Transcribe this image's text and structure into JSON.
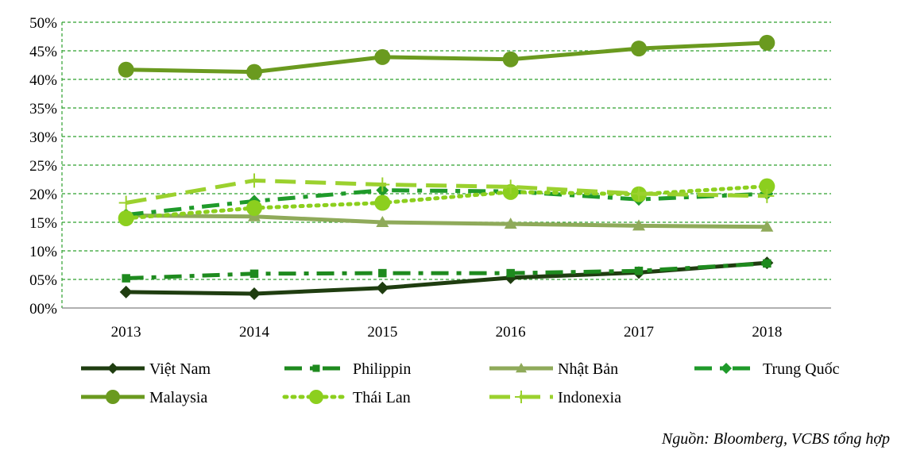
{
  "chart_data": {
    "type": "line",
    "categories": [
      "2013",
      "2014",
      "2015",
      "2016",
      "2017",
      "2018"
    ],
    "ylim": [
      0,
      50
    ],
    "yticks": [
      0,
      5,
      10,
      15,
      20,
      25,
      30,
      35,
      40,
      45,
      50
    ],
    "ytick_labels": [
      "00%",
      "05%",
      "10%",
      "15%",
      "20%",
      "25%",
      "30%",
      "35%",
      "40%",
      "45%",
      "50%"
    ],
    "grid": true,
    "legend_position": "bottom",
    "series": [
      {
        "name": "Việt Nam",
        "values": [
          2.8,
          2.5,
          3.5,
          5.3,
          6.2,
          7.9
        ],
        "color": "#1f3d10",
        "dash": "solid",
        "marker": "diamond"
      },
      {
        "name": "Philippin",
        "values": [
          5.2,
          6.0,
          6.1,
          6.1,
          6.5,
          7.8
        ],
        "color": "#1e8a1e",
        "dash": "dashdot",
        "marker": "square"
      },
      {
        "name": "Nhật Bản",
        "values": [
          16.2,
          16.0,
          15.0,
          14.7,
          14.4,
          14.2
        ],
        "color": "#8faa5a",
        "dash": "solid",
        "marker": "triangle"
      },
      {
        "name": "Trung Quốc",
        "values": [
          16.3,
          18.7,
          20.6,
          20.4,
          19.0,
          20.0
        ],
        "color": "#1f9a2a",
        "dash": "dashdot",
        "marker": "diamond"
      },
      {
        "name": "Malaysia",
        "values": [
          41.7,
          41.3,
          43.9,
          43.5,
          45.4,
          46.4
        ],
        "color": "#6a9a1f",
        "dash": "solid",
        "marker": "circle"
      },
      {
        "name": "Thái Lan",
        "values": [
          15.7,
          17.5,
          18.4,
          20.3,
          19.9,
          21.3
        ],
        "color": "#8ccf1e",
        "dash": "dot",
        "marker": "circle"
      },
      {
        "name": "Indonexia",
        "values": [
          18.4,
          22.3,
          21.6,
          21.2,
          20.0,
          19.6
        ],
        "color": "#9bd12e",
        "dash": "longdash",
        "marker": "plus"
      }
    ]
  },
  "source_note": "Nguồn: Bloomberg, VCBS tổng hợp"
}
